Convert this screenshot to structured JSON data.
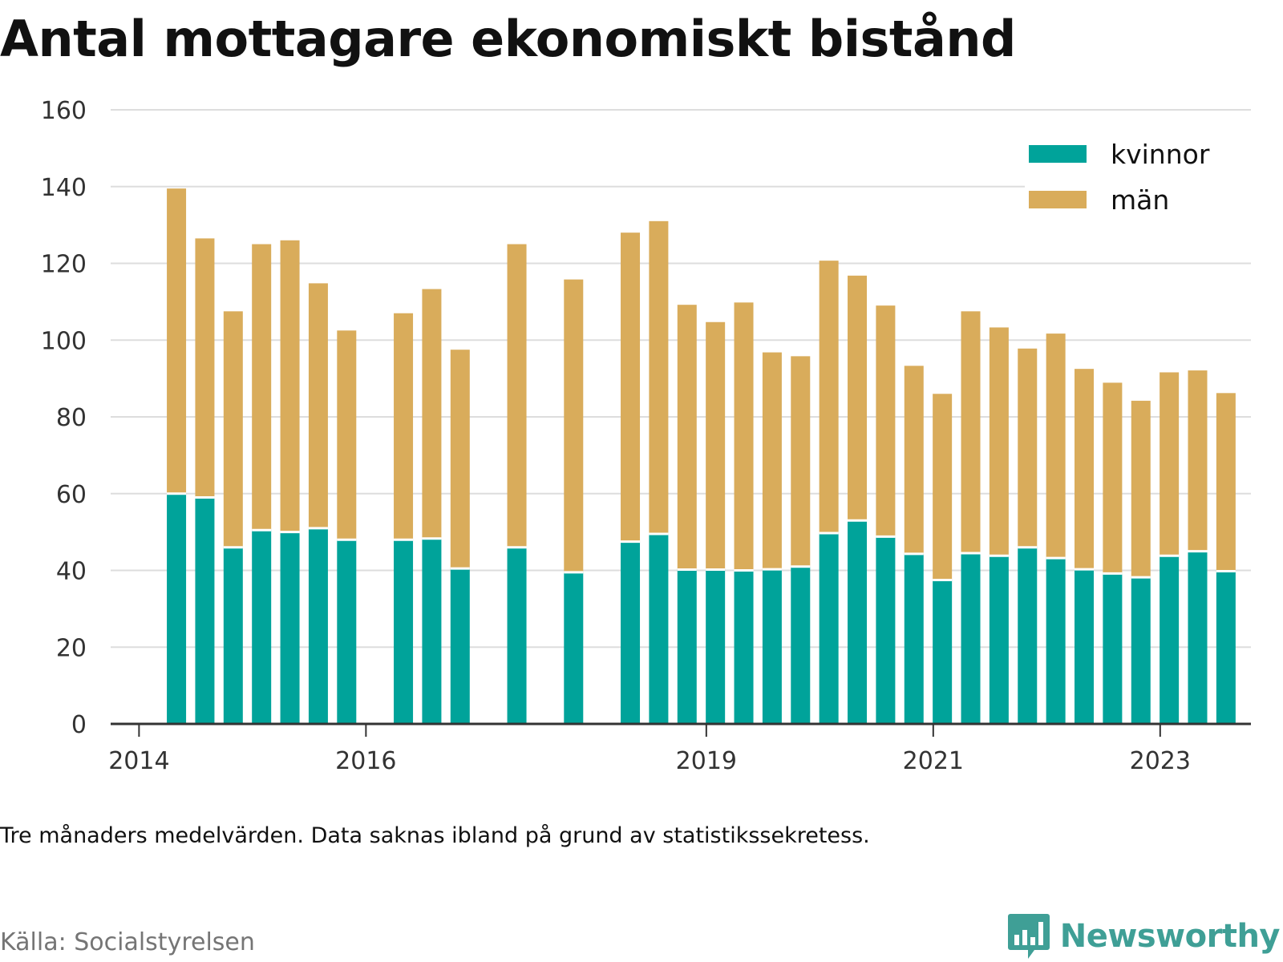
{
  "title": "Antal mottagare ekonomiskt bistånd",
  "footnote": "Tre månaders medelvärden. Data saknas ibland på grund av statistikssekretess.",
  "source": "Källa: Socialstyrelsen",
  "brand": {
    "name": "Newsworthy",
    "icon": "bar-chart-speech-bubble-icon",
    "color": "#3f9f96"
  },
  "colors": {
    "kvinnor": "#00a39a",
    "man": "#d9ac5b",
    "grid": "#dddddd",
    "axis": "#333333"
  },
  "chart_data": {
    "type": "bar",
    "stacked": true,
    "title": "Antal mottagare ekonomiskt bistånd",
    "xlabel": "",
    "ylabel": "",
    "ylim": [
      0,
      160
    ],
    "yticks": [
      0,
      20,
      40,
      60,
      80,
      100,
      120,
      140,
      160
    ],
    "grid": true,
    "legend_position": "top-right",
    "xticks": [
      {
        "label": "2014",
        "x": 2014.0
      },
      {
        "label": "2016",
        "x": 2016.0
      },
      {
        "label": "2019",
        "x": 2019.0
      },
      {
        "label": "2021",
        "x": 2021.0
      },
      {
        "label": "2023",
        "x": 2023.0
      }
    ],
    "x": [
      2014.33,
      2014.58,
      2014.83,
      2015.08,
      2015.33,
      2015.58,
      2015.83,
      2016.33,
      2016.58,
      2016.83,
      2017.33,
      2017.83,
      2018.33,
      2018.58,
      2018.83,
      2019.08,
      2019.33,
      2019.58,
      2019.83,
      2020.08,
      2020.33,
      2020.58,
      2020.83,
      2021.08,
      2021.33,
      2021.58,
      2021.83,
      2022.08,
      2022.33,
      2022.58,
      2022.83,
      2023.08,
      2023.33,
      2023.58
    ],
    "series": [
      {
        "name": "kvinnor",
        "color": "#00a39a",
        "values": [
          60,
          59,
          46,
          50.5,
          50,
          51,
          48,
          48,
          48.3,
          40.5,
          46,
          39.5,
          47.5,
          49.5,
          40.2,
          40.2,
          40,
          40.3,
          41,
          49.7,
          53,
          48.8,
          44.3,
          37.5,
          44.5,
          43.8,
          46,
          43.2,
          40.3,
          39.2,
          38.2,
          43.8,
          45,
          39.8
        ]
      },
      {
        "name": "män",
        "color": "#d9ac5b",
        "values": [
          79.5,
          67.5,
          61.5,
          74.5,
          76,
          63.8,
          54.5,
          59,
          65,
          57,
          79,
          76.3,
          80.5,
          81.5,
          69,
          64.5,
          69.8,
          56.5,
          54.8,
          71,
          63.8,
          60.2,
          49,
          48.5,
          63,
          59.5,
          51.8,
          58.5,
          52.2,
          49.7,
          46,
          47.8,
          47.1,
          46.4
        ]
      }
    ]
  }
}
